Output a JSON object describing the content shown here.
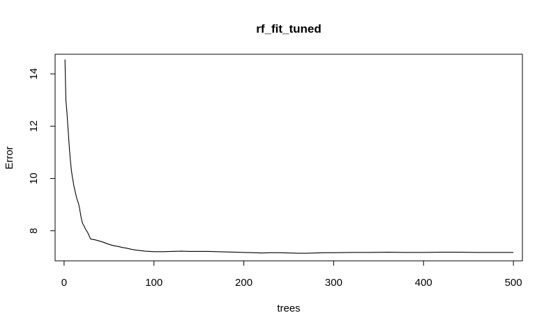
{
  "chart_data": {
    "type": "line",
    "title": "rf_fit_tuned",
    "xlabel": "trees",
    "ylabel": "Error",
    "xlim": [
      -10,
      510
    ],
    "ylim": [
      6.85,
      14.75
    ],
    "x_ticks": [
      0,
      100,
      200,
      300,
      400,
      500
    ],
    "y_ticks": [
      8,
      10,
      12,
      14
    ],
    "grid": false,
    "legend": "none",
    "series": [
      {
        "color": "#000000",
        "points": [
          [
            1,
            14.55
          ],
          [
            2,
            13.0
          ],
          [
            3,
            12.6
          ],
          [
            4,
            12.1
          ],
          [
            5,
            11.6
          ],
          [
            6,
            11.1
          ],
          [
            7,
            10.7
          ],
          [
            8,
            10.35
          ],
          [
            9,
            10.1
          ],
          [
            10,
            9.9
          ],
          [
            11,
            9.7
          ],
          [
            12,
            9.55
          ],
          [
            13,
            9.4
          ],
          [
            14,
            9.25
          ],
          [
            15,
            9.15
          ],
          [
            16,
            9.05
          ],
          [
            17,
            8.9
          ],
          [
            18,
            8.7
          ],
          [
            19,
            8.5
          ],
          [
            20,
            8.35
          ],
          [
            21,
            8.25
          ],
          [
            22,
            8.2
          ],
          [
            23,
            8.12
          ],
          [
            24,
            8.05
          ],
          [
            25,
            8.0
          ],
          [
            26,
            7.95
          ],
          [
            27,
            7.88
          ],
          [
            28,
            7.8
          ],
          [
            29,
            7.72
          ],
          [
            30,
            7.68
          ],
          [
            32,
            7.67
          ],
          [
            35,
            7.65
          ],
          [
            38,
            7.62
          ],
          [
            40,
            7.6
          ],
          [
            43,
            7.57
          ],
          [
            46,
            7.53
          ],
          [
            50,
            7.48
          ],
          [
            55,
            7.43
          ],
          [
            60,
            7.4
          ],
          [
            65,
            7.36
          ],
          [
            70,
            7.33
          ],
          [
            75,
            7.29
          ],
          [
            80,
            7.26
          ],
          [
            85,
            7.24
          ],
          [
            90,
            7.22
          ],
          [
            95,
            7.21
          ],
          [
            100,
            7.2
          ],
          [
            110,
            7.2
          ],
          [
            120,
            7.21
          ],
          [
            130,
            7.22
          ],
          [
            140,
            7.21
          ],
          [
            150,
            7.21
          ],
          [
            160,
            7.21
          ],
          [
            170,
            7.2
          ],
          [
            180,
            7.19
          ],
          [
            190,
            7.18
          ],
          [
            200,
            7.17
          ],
          [
            210,
            7.16
          ],
          [
            220,
            7.15
          ],
          [
            230,
            7.16
          ],
          [
            240,
            7.16
          ],
          [
            250,
            7.15
          ],
          [
            260,
            7.14
          ],
          [
            270,
            7.14
          ],
          [
            280,
            7.15
          ],
          [
            290,
            7.16
          ],
          [
            300,
            7.16
          ],
          [
            320,
            7.17
          ],
          [
            340,
            7.17
          ],
          [
            360,
            7.18
          ],
          [
            380,
            7.17
          ],
          [
            400,
            7.17
          ],
          [
            420,
            7.18
          ],
          [
            440,
            7.18
          ],
          [
            460,
            7.17
          ],
          [
            480,
            7.17
          ],
          [
            500,
            7.17
          ]
        ]
      }
    ]
  }
}
